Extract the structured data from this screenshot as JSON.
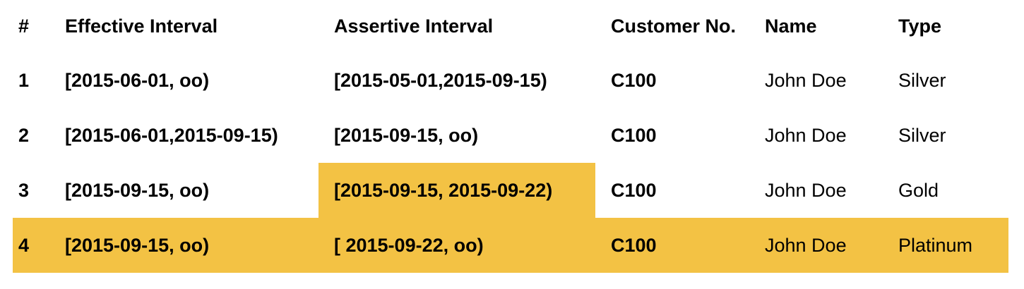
{
  "highlight_color": "#f3c244",
  "columns": [
    "#",
    "Effective Interval",
    "Assertive Interval",
    "Customer No.",
    "Name",
    "Type"
  ],
  "rows": [
    {
      "num": "1",
      "effective": "[2015-06-01, oo)",
      "assertive": "[2015-05-01,2015-09-15)",
      "customer": "C100",
      "name": "John Doe",
      "type": "Silver"
    },
    {
      "num": "2",
      "effective": "[2015-06-01,2015-09-15)",
      "assertive": "[2015-09-15, oo)",
      "customer": "C100",
      "name": "John Doe",
      "type": "Silver"
    },
    {
      "num": "3",
      "effective": "[2015-09-15, oo)",
      "assertive": "[2015-09-15, 2015-09-22)",
      "customer": "C100",
      "name": "John Doe",
      "type": "Gold"
    },
    {
      "num": "4",
      "effective": "[2015-09-15, oo)",
      "assertive": "[ 2015-09-22, oo)",
      "customer": "C100",
      "name": "John Doe",
      "type": "Platinum"
    }
  ],
  "highlighted_cells": [
    "row 3 assertive interval"
  ],
  "highlighted_rows": [
    "row 4"
  ]
}
